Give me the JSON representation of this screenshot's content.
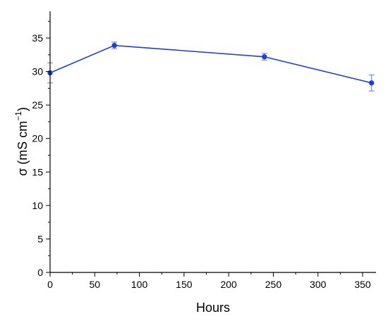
{
  "chart_data": {
    "type": "line",
    "xlabel": "Hours",
    "ylabel_main": "σ (mS cm",
    "ylabel_sup": "−1",
    "ylabel_close": ")",
    "xlim": [
      0,
      365
    ],
    "ylim": [
      0,
      39
    ],
    "xticks": [
      0,
      50,
      100,
      150,
      200,
      250,
      300,
      350
    ],
    "yticks": [
      0,
      5,
      10,
      15,
      20,
      25,
      30,
      35
    ],
    "x": [
      0,
      72,
      240,
      360
    ],
    "series": [
      {
        "values": [
          29.8,
          33.9,
          32.2,
          28.3
        ],
        "errors": [
          1.5,
          0.5,
          0.5,
          1.2
        ],
        "color": "#1f3fd9"
      }
    ],
    "grid": false,
    "legend": "none"
  }
}
